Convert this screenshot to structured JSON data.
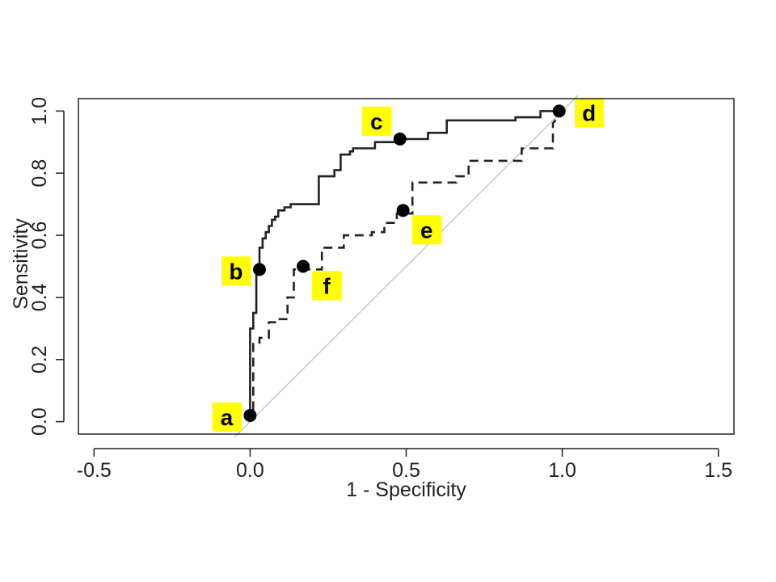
{
  "chart_data": {
    "type": "line",
    "title": "",
    "xlabel": "1 - Specificity",
    "ylabel": "Sensitivity",
    "xlim": [
      -0.55,
      1.55
    ],
    "ylim": [
      -0.04,
      1.04
    ],
    "x_ticks": [
      -0.5,
      0.0,
      0.5,
      1.0,
      1.5
    ],
    "x_tick_labels": [
      "-0.5",
      "0.0",
      "0.5",
      "1.0",
      "1.5"
    ],
    "y_ticks": [
      0.0,
      0.2,
      0.4,
      0.6,
      0.8,
      1.0
    ],
    "y_tick_labels": [
      "0.0",
      "0.2",
      "0.4",
      "0.6",
      "0.8",
      "1.0"
    ],
    "grid": false,
    "legend": "none",
    "reference_line": {
      "x": [
        -0.05,
        1.05
      ],
      "y": [
        -0.05,
        1.05
      ],
      "color": "#c8c8c8"
    },
    "series": [
      {
        "style": "solid",
        "color": "#222222",
        "x": [
          0.0,
          0.0,
          0.0,
          0.0,
          0.01,
          0.01,
          0.02,
          0.02,
          0.03,
          0.03,
          0.04,
          0.04,
          0.05,
          0.05,
          0.06,
          0.06,
          0.07,
          0.07,
          0.08,
          0.08,
          0.09,
          0.09,
          0.11,
          0.11,
          0.13,
          0.13,
          0.22,
          0.22,
          0.27,
          0.27,
          0.29,
          0.29,
          0.32,
          0.32,
          0.33,
          0.33,
          0.4,
          0.4,
          0.49,
          0.49,
          0.57,
          0.57,
          0.63,
          0.63,
          0.85,
          0.85,
          0.93,
          0.93,
          1.0
        ],
        "y": [
          0.0,
          0.02,
          0.02,
          0.3,
          0.3,
          0.35,
          0.35,
          0.49,
          0.49,
          0.56,
          0.56,
          0.59,
          0.59,
          0.61,
          0.61,
          0.63,
          0.63,
          0.65,
          0.65,
          0.66,
          0.66,
          0.68,
          0.68,
          0.69,
          0.69,
          0.7,
          0.7,
          0.79,
          0.79,
          0.81,
          0.81,
          0.86,
          0.86,
          0.87,
          0.87,
          0.88,
          0.88,
          0.9,
          0.9,
          0.91,
          0.91,
          0.93,
          0.93,
          0.97,
          0.97,
          0.98,
          0.98,
          1.0,
          1.0
        ]
      },
      {
        "style": "dashed",
        "color": "#222222",
        "x": [
          0.0,
          0.0,
          0.01,
          0.01,
          0.03,
          0.03,
          0.06,
          0.06,
          0.09,
          0.09,
          0.12,
          0.12,
          0.14,
          0.14,
          0.23,
          0.23,
          0.3,
          0.3,
          0.39,
          0.39,
          0.43,
          0.43,
          0.47,
          0.47,
          0.52,
          0.52,
          0.66,
          0.66,
          0.7,
          0.7,
          0.87,
          0.87,
          0.97,
          0.97,
          1.0
        ],
        "y": [
          0.0,
          0.02,
          0.02,
          0.25,
          0.25,
          0.27,
          0.27,
          0.32,
          0.32,
          0.33,
          0.33,
          0.4,
          0.4,
          0.49,
          0.49,
          0.56,
          0.56,
          0.6,
          0.6,
          0.61,
          0.61,
          0.64,
          0.64,
          0.67,
          0.67,
          0.77,
          0.77,
          0.79,
          0.79,
          0.84,
          0.84,
          0.88,
          0.88,
          0.96,
          1.0
        ]
      }
    ],
    "points": [
      {
        "label": "a",
        "x": 0.0,
        "y": 0.02,
        "label_side": "left"
      },
      {
        "label": "b",
        "x": 0.03,
        "y": 0.49,
        "label_side": "left"
      },
      {
        "label": "c",
        "x": 0.48,
        "y": 0.91,
        "label_side": "upper-left"
      },
      {
        "label": "d",
        "x": 0.99,
        "y": 1.0,
        "label_side": "right"
      },
      {
        "label": "e",
        "x": 0.49,
        "y": 0.68,
        "label_side": "lower-right"
      },
      {
        "label": "f",
        "x": 0.17,
        "y": 0.5,
        "label_side": "lower-right"
      }
    ],
    "label_highlight_color": "#ffff00"
  }
}
